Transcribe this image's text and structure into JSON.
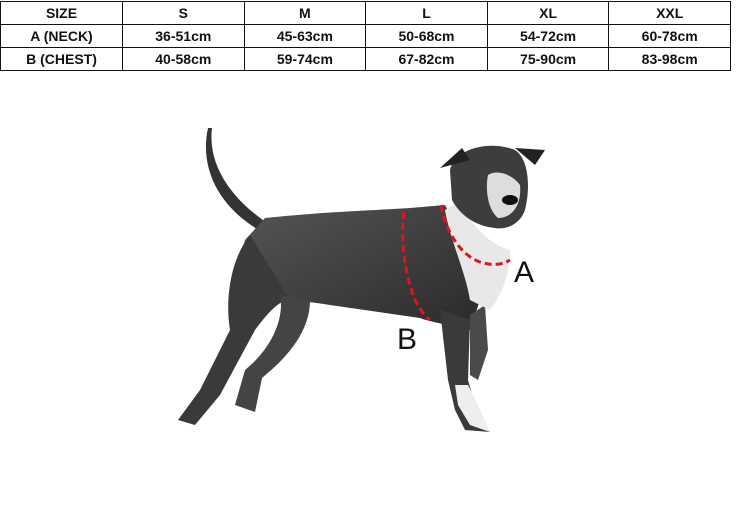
{
  "size_table": {
    "header": [
      "SIZE",
      "S",
      "M",
      "L",
      "XL",
      "XXL"
    ],
    "rows": [
      [
        "A (NECK)",
        "36-51cm",
        "45-63cm",
        "50-68cm",
        "54-72cm",
        "60-78cm"
      ],
      [
        "B (CHEST)",
        "40-58cm",
        "59-74cm",
        "67-82cm",
        "75-90cm",
        "83-98cm"
      ]
    ]
  },
  "diagram": {
    "label_a": "A",
    "label_b": "B",
    "measure_line_color": "#e0141e"
  }
}
